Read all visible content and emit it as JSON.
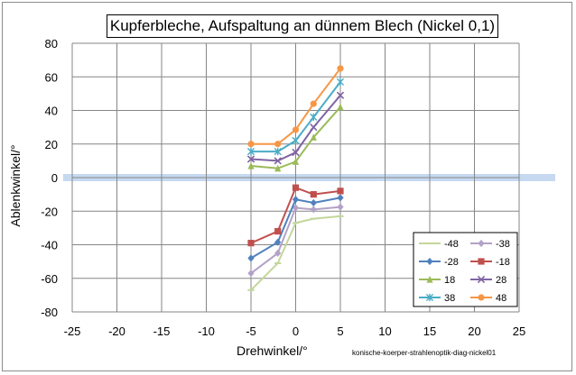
{
  "chart_data": {
    "type": "line",
    "title": "Kupferbleche, Aufspaltung an dünnem Blech (Nickel 0,1)",
    "xlabel": "Drehwinkel/°",
    "ylabel": "Ablenkwinkel/°",
    "xlim": [
      -25,
      25
    ],
    "ylim": [
      -80,
      80
    ],
    "xticks": [
      -25,
      -20,
      -15,
      -10,
      -5,
      0,
      5,
      10,
      15,
      20,
      25
    ],
    "yticks": [
      -80,
      -60,
      -40,
      -20,
      0,
      20,
      40,
      60,
      80
    ],
    "grid": true,
    "legend_position": "bottom-right",
    "legend_columns": 2,
    "zero_band_color": "#c6d9f1",
    "x": [
      -5,
      -2,
      0,
      2,
      5
    ],
    "series": [
      {
        "name": "-48",
        "color": "#c3d69b",
        "marker": "dash",
        "values": [
          -67,
          -51,
          -27,
          -24.5,
          -23
        ]
      },
      {
        "name": "-38",
        "color": "#b3a2c7",
        "marker": "diamond",
        "values": [
          -57,
          -45,
          -18,
          -19,
          -17.5
        ]
      },
      {
        "name": "-28",
        "color": "#4f81bd",
        "marker": "diamond",
        "values": [
          -48,
          -38.5,
          -13,
          -15,
          -12
        ]
      },
      {
        "name": "-18",
        "color": "#c0504d",
        "marker": "square",
        "values": [
          -39,
          -32,
          -6,
          -10,
          -8
        ]
      },
      {
        "name": "18",
        "color": "#9bbb59",
        "marker": "triangle",
        "values": [
          7,
          5.5,
          9.5,
          24,
          42
        ]
      },
      {
        "name": "28",
        "color": "#8064a2",
        "marker": "cross",
        "values": [
          11,
          10,
          15,
          30,
          49
        ]
      },
      {
        "name": "38",
        "color": "#4bacc6",
        "marker": "star",
        "values": [
          15.5,
          15.5,
          22,
          36,
          57
        ]
      },
      {
        "name": "48",
        "color": "#f79646",
        "marker": "circle",
        "values": [
          20,
          20,
          28.5,
          44,
          65
        ]
      }
    ]
  },
  "credit": "konische-koerper-strahlenoptik-diag-nickel01"
}
